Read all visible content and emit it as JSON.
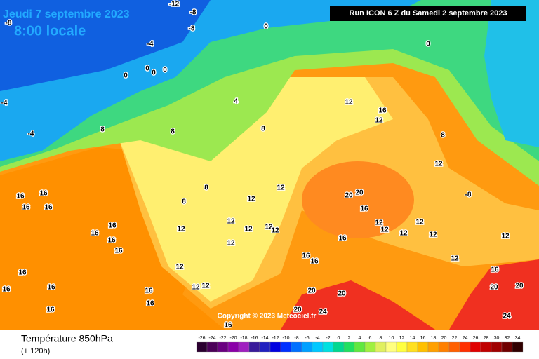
{
  "header": {
    "date": "Jeudi 7 septembre 2023",
    "time": "8:00 locale",
    "run": "Run ICON 6 Z du Samedi 2 septembre 2023"
  },
  "footer": {
    "title": "Température 850hPa",
    "lead": "(+ 120h)",
    "copyright": "Copyright © 2023 Meteociel.fr"
  },
  "map": {
    "labels": [
      "-12",
      "-8",
      "-8",
      "-8",
      "-4",
      "0",
      "0",
      "0",
      "0",
      "0",
      "0",
      "-4",
      "-4",
      "4",
      "8",
      "8",
      "8",
      "8",
      "8",
      "12",
      "16",
      "12",
      "12",
      "12",
      "12",
      "-8",
      "8",
      "20",
      "20",
      "16",
      "12",
      "12",
      "12",
      "12",
      "12",
      "12",
      "12",
      "12",
      "12",
      "16",
      "16",
      "16",
      "16",
      "16",
      "16",
      "16",
      "16",
      "16",
      "16",
      "16",
      "16",
      "16",
      "16",
      "16",
      "12",
      "12",
      "12",
      "16",
      "16",
      "16",
      "20",
      "20",
      "20",
      "24",
      "20",
      "20",
      "24",
      "16",
      "12",
      "12",
      "12",
      "12"
    ]
  },
  "colorbar": {
    "ticks": [
      -26,
      -24,
      -22,
      -20,
      -18,
      -16,
      -14,
      -12,
      -10,
      -8,
      -6,
      -4,
      -2,
      0,
      2,
      4,
      6,
      8,
      10,
      12,
      14,
      16,
      18,
      20,
      22,
      24,
      26,
      28,
      30,
      32,
      34
    ],
    "colors": [
      "#2b0030",
      "#4b0058",
      "#6a0080",
      "#8a00a8",
      "#a020c0",
      "#3a1a9a",
      "#2020c0",
      "#0000e0",
      "#0030ff",
      "#0070ff",
      "#00a0ff",
      "#00c8ff",
      "#00e0e0",
      "#00d890",
      "#20e060",
      "#60e840",
      "#a0f040",
      "#e0f060",
      "#ffff80",
      "#ffff40",
      "#ffe020",
      "#ffc000",
      "#ffa000",
      "#ff8000",
      "#ff6000",
      "#ff3000",
      "#e00000",
      "#c00000",
      "#a00000",
      "#700000",
      "#300000"
    ]
  }
}
